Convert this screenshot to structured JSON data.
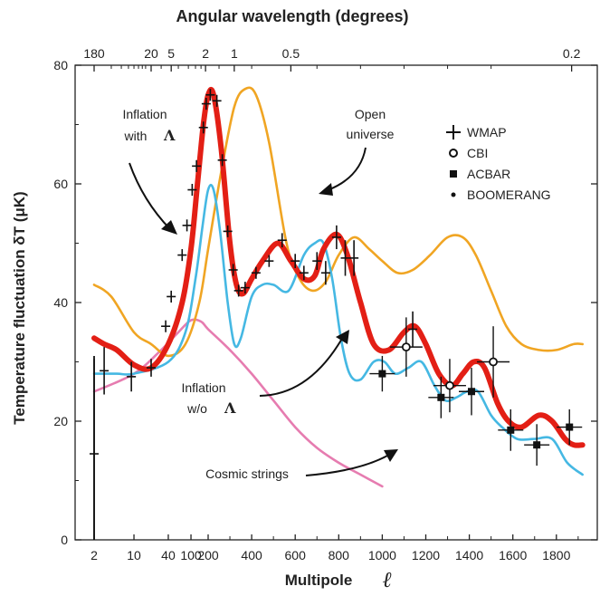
{
  "chart_data": {
    "type": "line",
    "title_top": "Angular wavelength (degrees)",
    "xlabel": "Multipole",
    "xlabel_symbol": "ℓ",
    "ylabel": "Temperature fluctuation δT (μK)",
    "ylim": [
      0,
      80
    ],
    "yticks": [
      "0",
      "20",
      "40",
      "60",
      "80"
    ],
    "xticks": [
      {
        "label": "2",
        "x": 2
      },
      {
        "label": "10",
        "x": 10
      },
      {
        "label": "40",
        "x": 40
      },
      {
        "label": "100",
        "x": 100
      },
      {
        "label": "200",
        "x": 200
      },
      {
        "label": "400",
        "x": 400
      },
      {
        "label": "600",
        "x": 600
      },
      {
        "label": "800",
        "x": 800
      },
      {
        "label": "1000",
        "x": 1000
      },
      {
        "label": "1200",
        "x": 1200
      },
      {
        "label": "1400",
        "x": 1400
      },
      {
        "label": "1600",
        "x": 1600
      },
      {
        "label": "1800",
        "x": 1800
      }
    ],
    "top_ticks": [
      {
        "label": "180",
        "x": 2
      },
      {
        "label": "20",
        "x": 20
      },
      {
        "label": "5",
        "x": 45
      },
      {
        "label": "2",
        "x": 180
      },
      {
        "label": "1",
        "x": 320
      },
      {
        "label": "0.5",
        "x": 580
      },
      {
        "label": "0.2",
        "x": 1870
      }
    ],
    "series": [
      {
        "name": "Inflation with Λ",
        "color": "#e31f15",
        "points": [
          [
            2,
            34
          ],
          [
            3,
            33
          ],
          [
            5,
            32
          ],
          [
            10,
            29.5
          ],
          [
            20,
            29
          ],
          [
            40,
            33
          ],
          [
            70,
            40
          ],
          [
            100,
            49
          ],
          [
            130,
            60
          ],
          [
            165,
            70
          ],
          [
            200,
            75
          ],
          [
            225,
            75
          ],
          [
            260,
            66
          ],
          [
            300,
            50
          ],
          [
            330,
            43
          ],
          [
            360,
            41.5
          ],
          [
            400,
            44
          ],
          [
            450,
            47
          ],
          [
            520,
            50
          ],
          [
            580,
            47
          ],
          [
            640,
            44
          ],
          [
            690,
            44.5
          ],
          [
            730,
            49
          ],
          [
            790,
            51.5
          ],
          [
            840,
            48
          ],
          [
            900,
            40
          ],
          [
            960,
            33
          ],
          [
            1030,
            32
          ],
          [
            1100,
            35
          ],
          [
            1150,
            36
          ],
          [
            1200,
            33
          ],
          [
            1260,
            28
          ],
          [
            1320,
            26
          ],
          [
            1370,
            28
          ],
          [
            1420,
            30
          ],
          [
            1470,
            29
          ],
          [
            1530,
            23
          ],
          [
            1580,
            20
          ],
          [
            1640,
            19
          ],
          [
            1720,
            21
          ],
          [
            1780,
            20
          ],
          [
            1840,
            17
          ],
          [
            1880,
            16
          ],
          [
            1920,
            16
          ]
        ]
      },
      {
        "name": "Inflation w/o Λ",
        "color": "#45b8e3",
        "points": [
          [
            2,
            28
          ],
          [
            5,
            28
          ],
          [
            10,
            28
          ],
          [
            40,
            30
          ],
          [
            80,
            35
          ],
          [
            120,
            44
          ],
          [
            160,
            53
          ],
          [
            200,
            59
          ],
          [
            225,
            59
          ],
          [
            255,
            52
          ],
          [
            290,
            40
          ],
          [
            320,
            33
          ],
          [
            350,
            34
          ],
          [
            400,
            41
          ],
          [
            450,
            43
          ],
          [
            500,
            43
          ],
          [
            570,
            42
          ],
          [
            640,
            48
          ],
          [
            690,
            50
          ],
          [
            730,
            50
          ],
          [
            770,
            44
          ],
          [
            810,
            34
          ],
          [
            850,
            28
          ],
          [
            900,
            27
          ],
          [
            960,
            30
          ],
          [
            1010,
            30
          ],
          [
            1060,
            28
          ],
          [
            1120,
            29
          ],
          [
            1180,
            30
          ],
          [
            1240,
            26
          ],
          [
            1290,
            23.5
          ],
          [
            1340,
            24
          ],
          [
            1390,
            25
          ],
          [
            1440,
            25
          ],
          [
            1500,
            21
          ],
          [
            1550,
            19
          ],
          [
            1620,
            17
          ],
          [
            1700,
            17
          ],
          [
            1780,
            17
          ],
          [
            1850,
            13
          ],
          [
            1920,
            11
          ]
        ]
      },
      {
        "name": "Open universe",
        "color": "#f0a523",
        "points": [
          [
            2,
            43
          ],
          [
            4,
            41
          ],
          [
            10,
            35
          ],
          [
            20,
            33
          ],
          [
            40,
            31
          ],
          [
            80,
            33
          ],
          [
            140,
            40
          ],
          [
            200,
            49
          ],
          [
            260,
            62
          ],
          [
            320,
            73
          ],
          [
            370,
            76
          ],
          [
            420,
            75
          ],
          [
            480,
            67
          ],
          [
            560,
            50
          ],
          [
            620,
            44
          ],
          [
            680,
            42
          ],
          [
            740,
            43.5
          ],
          [
            800,
            48
          ],
          [
            870,
            51
          ],
          [
            940,
            49
          ],
          [
            1000,
            47
          ],
          [
            1070,
            45
          ],
          [
            1140,
            45.5
          ],
          [
            1220,
            48
          ],
          [
            1300,
            51
          ],
          [
            1370,
            51
          ],
          [
            1430,
            48
          ],
          [
            1500,
            42
          ],
          [
            1570,
            36
          ],
          [
            1640,
            33
          ],
          [
            1720,
            32
          ],
          [
            1800,
            32
          ],
          [
            1880,
            33
          ],
          [
            1920,
            33
          ]
        ]
      },
      {
        "name": "Cosmic strings",
        "color": "#e67cb0",
        "points": [
          [
            2,
            25
          ],
          [
            10,
            28
          ],
          [
            30,
            32
          ],
          [
            60,
            35
          ],
          [
            100,
            37
          ],
          [
            150,
            36.8
          ],
          [
            200,
            35.5
          ],
          [
            300,
            32
          ],
          [
            400,
            28
          ],
          [
            500,
            23.5
          ],
          [
            600,
            19
          ],
          [
            700,
            15.5
          ],
          [
            800,
            13
          ],
          [
            900,
            11
          ],
          [
            1000,
            9
          ]
        ]
      }
    ],
    "wmap": [
      {
        "x": 2,
        "y": 14.5,
        "e": 16
      },
      {
        "x": 3,
        "y": 28.5,
        "e": 4
      },
      {
        "x": 9,
        "y": 27.5,
        "e": 2.5
      },
      {
        "x": 20,
        "y": 29,
        "e": 1.5
      },
      {
        "x": 36,
        "y": 36,
        "e": 1
      },
      {
        "x": 45,
        "y": 41,
        "e": 1
      },
      {
        "x": 70,
        "y": 48,
        "e": 1
      },
      {
        "x": 85,
        "y": 53,
        "e": 1
      },
      {
        "x": 105,
        "y": 59,
        "e": 1
      },
      {
        "x": 125,
        "y": 63,
        "e": 1
      },
      {
        "x": 165,
        "y": 69.5,
        "e": 1
      },
      {
        "x": 185,
        "y": 73.5,
        "e": 1
      },
      {
        "x": 210,
        "y": 75,
        "e": 1
      },
      {
        "x": 240,
        "y": 74,
        "e": 1
      },
      {
        "x": 265,
        "y": 64,
        "e": 1
      },
      {
        "x": 290,
        "y": 52,
        "e": 1
      },
      {
        "x": 315,
        "y": 45.5,
        "e": 1
      },
      {
        "x": 340,
        "y": 42,
        "e": 1
      },
      {
        "x": 370,
        "y": 42.5,
        "e": 1
      },
      {
        "x": 420,
        "y": 45,
        "e": 1
      },
      {
        "x": 480,
        "y": 47,
        "e": 1
      },
      {
        "x": 540,
        "y": 50.5,
        "e": 1.2
      },
      {
        "x": 600,
        "y": 47,
        "e": 1.2
      },
      {
        "x": 640,
        "y": 45,
        "e": 1.2
      },
      {
        "x": 700,
        "y": 47,
        "e": 1.5
      },
      {
        "x": 740,
        "y": 45,
        "e": 2
      },
      {
        "x": 790,
        "y": 51,
        "e": 2
      },
      {
        "x": 830,
        "y": 47.5,
        "e": 3
      },
      {
        "x": 870,
        "y": 47.5,
        "e": 3
      },
      {
        "x": 1140,
        "y": 35.5,
        "e": 3
      }
    ],
    "cbi": [
      {
        "x": 1110,
        "y": 32.5,
        "e": 5
      },
      {
        "x": 1310,
        "y": 26,
        "e": 4.5
      },
      {
        "x": 1510,
        "y": 30,
        "e": 6
      }
    ],
    "acbar": [
      {
        "x": 1000,
        "y": 28,
        "e": 3
      },
      {
        "x": 1270,
        "y": 24,
        "e": 3.5
      },
      {
        "x": 1410,
        "y": 25,
        "e": 4
      },
      {
        "x": 1590,
        "y": 18.5,
        "e": 3.5
      },
      {
        "x": 1710,
        "y": 16,
        "e": 3.5
      },
      {
        "x": 1860,
        "y": 19,
        "e": 3
      }
    ],
    "legend": [
      {
        "label": "WMAP",
        "marker": "plus"
      },
      {
        "label": "CBI",
        "marker": "open-circle"
      },
      {
        "label": "ACBAR",
        "marker": "square"
      },
      {
        "label": "BOOMERANG",
        "marker": "dot"
      }
    ],
    "annotations": {
      "inflation_with_line1": "Inflation",
      "inflation_with_line2": "with",
      "inflation_with_symbol": "Λ",
      "open_line1": "Open",
      "open_line2": "universe",
      "inflation_wo_line1": "Inflation",
      "inflation_wo_line2": "w/o",
      "inflation_wo_symbol": "Λ",
      "cosmic": "Cosmic strings"
    }
  }
}
